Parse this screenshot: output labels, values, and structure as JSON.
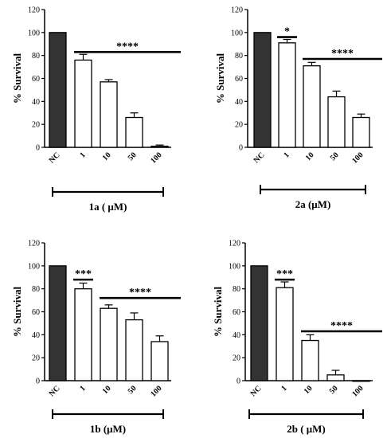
{
  "colors": {
    "control_bar": "#333333",
    "treated_bar": "#ffffff",
    "stroke": "#000000"
  },
  "chart_data": [
    {
      "type": "bar",
      "ylabel": "% Survival",
      "caption": "1a ( μM)",
      "categories": [
        "NC",
        "1",
        "10",
        "50",
        "100"
      ],
      "values": [
        100,
        76,
        57,
        26,
        1
      ],
      "errors": [
        0,
        5,
        2,
        4,
        1
      ],
      "ylim": [
        0,
        120
      ],
      "yticks": [
        "0",
        "20",
        "40",
        "60",
        "80",
        "100",
        "120"
      ],
      "significance": [
        {
          "label": "****",
          "from": "1",
          "to": "100",
          "y": 83
        }
      ]
    },
    {
      "type": "bar",
      "ylabel": "% Survival",
      "caption": "2a (μM)",
      "categories": [
        "NC",
        "1",
        "10",
        "50",
        "100"
      ],
      "values": [
        100,
        91,
        71,
        44,
        26
      ],
      "errors": [
        0,
        3,
        3,
        5,
        3
      ],
      "ylim": [
        0,
        120
      ],
      "yticks": [
        "0",
        "20",
        "40",
        "60",
        "80",
        "100",
        "120"
      ],
      "significance": [
        {
          "label": "*",
          "from": "1",
          "to": "1",
          "y": 96
        },
        {
          "label": "****",
          "from": "10",
          "to": "100",
          "y": 77
        }
      ]
    },
    {
      "type": "bar",
      "ylabel": "% Survival",
      "caption": "1b (μM)",
      "categories": [
        "NC",
        "1",
        "10",
        "50",
        "100"
      ],
      "values": [
        100,
        80,
        63,
        53,
        34
      ],
      "errors": [
        0,
        5,
        3,
        6,
        5
      ],
      "ylim": [
        0,
        120
      ],
      "yticks": [
        "0",
        "20",
        "40",
        "60",
        "80",
        "100",
        "120"
      ],
      "significance": [
        {
          "label": "***",
          "from": "1",
          "to": "1",
          "y": 88
        },
        {
          "label": "****",
          "from": "10",
          "to": "100",
          "y": 72
        }
      ]
    },
    {
      "type": "bar",
      "ylabel": "% Survival",
      "caption": "2b ( μM)",
      "categories": [
        "NC",
        "1",
        "10",
        "50",
        "100"
      ],
      "values": [
        100,
        81,
        35,
        5,
        0
      ],
      "errors": [
        0,
        5,
        5,
        4,
        0
      ],
      "ylim": [
        0,
        120
      ],
      "yticks": [
        "0",
        "20",
        "40",
        "60",
        "80",
        "100",
        "120"
      ],
      "significance": [
        {
          "label": "***",
          "from": "1",
          "to": "1",
          "y": 88
        },
        {
          "label": "****",
          "from": "10",
          "to": "100",
          "y": 43
        }
      ]
    }
  ]
}
